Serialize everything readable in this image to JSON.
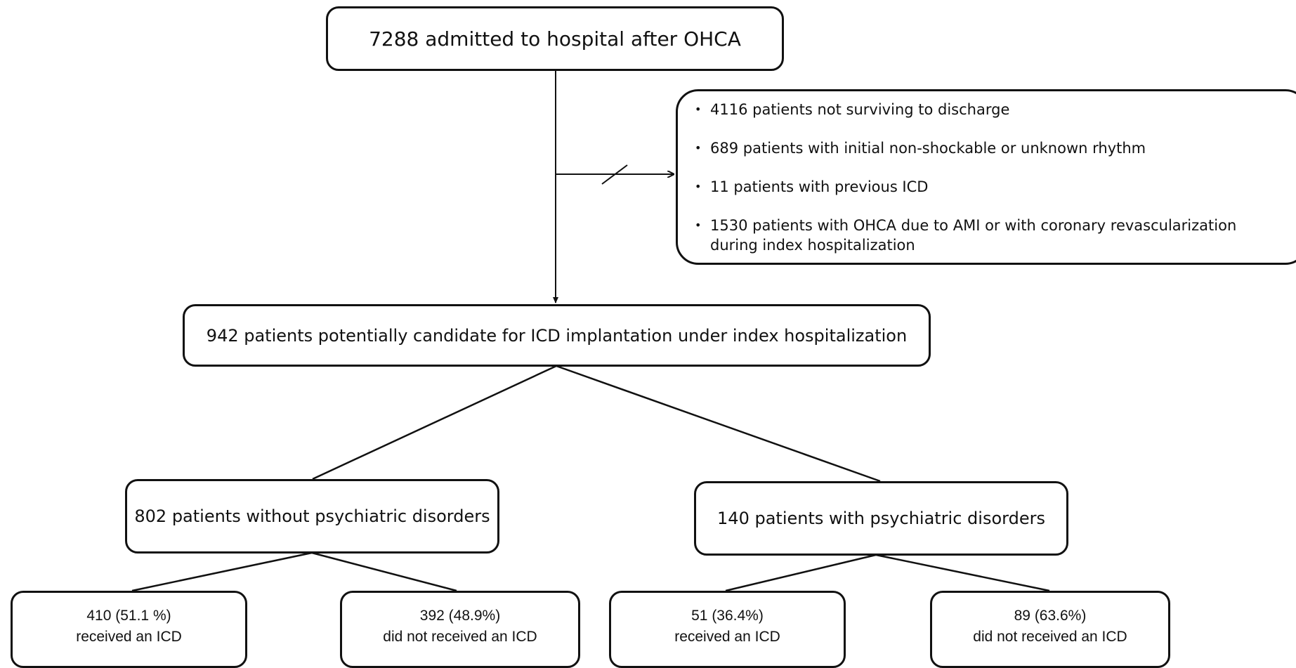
{
  "nodes": [
    {
      "label": "7288 admitted to hospital after OHCA"
    },
    {
      "label": "942 patients potentially candidate for ICD implantation under index hospitalization"
    },
    {
      "label": "802 patients without psychiatric disorders"
    },
    {
      "label": "140 patients with psychiatric disorders"
    }
  ],
  "exclusions": [
    "4116 patients not surviving to discharge",
    "689 patients with initial non-shockable or unknown rhythm",
    "11 patients with previous ICD",
    "1530 patients with OHCA due to AMI or with coronary revascularization during index hospitalization"
  ],
  "outcomes": [
    {
      "count": "410 (51.1 %)",
      "label": "received an ICD"
    },
    {
      "count": "392 (48.9%)",
      "label": "did not received an ICD"
    },
    {
      "count": "51 (36.4%)",
      "label": "received an ICD"
    },
    {
      "count": "89 (63.6%)",
      "label": "did not received an ICD"
    }
  ]
}
